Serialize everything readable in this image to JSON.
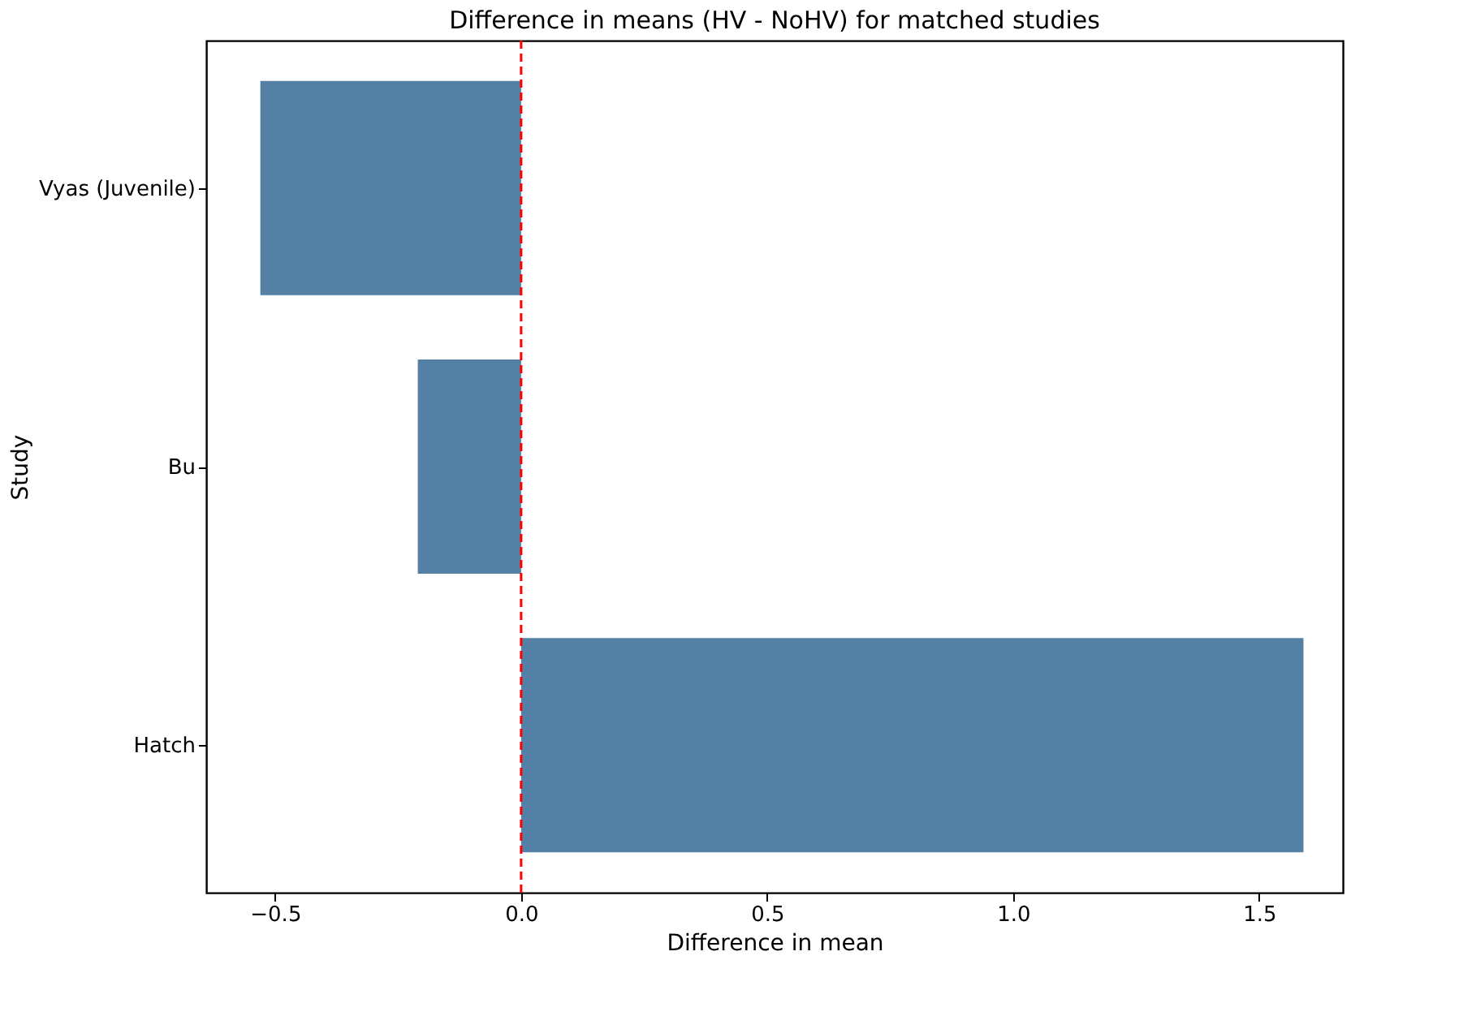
{
  "chart_data": {
    "type": "bar",
    "orientation": "horizontal",
    "title": "Difference in means (HV - NoHV) for matched studies",
    "xlabel": "Difference in mean",
    "ylabel": "Study",
    "categories": [
      "Vyas (Juvenile)",
      "Bu",
      "Hatch"
    ],
    "values": [
      -0.53,
      -0.21,
      1.59
    ],
    "color": "#5480a6",
    "xlim": [
      -0.64,
      1.67
    ],
    "xticks": [
      {
        "value": -0.5,
        "label": "−0.5"
      },
      {
        "value": 0,
        "label": "0.0"
      },
      {
        "value": 0.5,
        "label": "0.5"
      },
      {
        "value": 1,
        "label": "1.0"
      },
      {
        "value": 1.5,
        "label": "1.5"
      }
    ],
    "ref_lines": [
      {
        "axis": "x",
        "value": 0,
        "color": "#ff0000",
        "line_style": "dashed"
      }
    ],
    "grid": false
  }
}
